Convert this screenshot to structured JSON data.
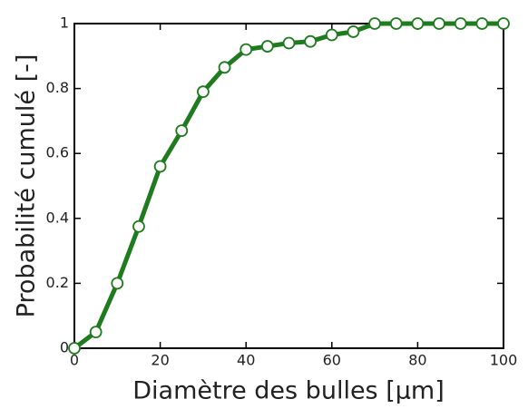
{
  "chart_data": {
    "type": "line",
    "xlabel": "Diamètre des bulles [µm]",
    "ylabel": "Probabilité cumulé [-]",
    "x": [
      0,
      5,
      10,
      15,
      20,
      25,
      30,
      35,
      40,
      45,
      50,
      55,
      60,
      65,
      70,
      75,
      80,
      85,
      90,
      95,
      100
    ],
    "series": [
      {
        "name": null,
        "color": "#1e7b1e",
        "values": [
          0,
          0.05,
          0.2,
          0.375,
          0.56,
          0.67,
          0.79,
          0.865,
          0.92,
          0.93,
          0.94,
          0.945,
          0.965,
          0.975,
          1,
          1,
          1,
          1,
          1,
          1,
          1
        ]
      }
    ],
    "xlim": [
      0,
      100
    ],
    "xticks": [
      0,
      20,
      40,
      60,
      80,
      100
    ],
    "ylim": [
      0,
      1
    ],
    "yticks": [
      0,
      0.2,
      0.4,
      0.6,
      0.8,
      1
    ],
    "grid": false
  }
}
